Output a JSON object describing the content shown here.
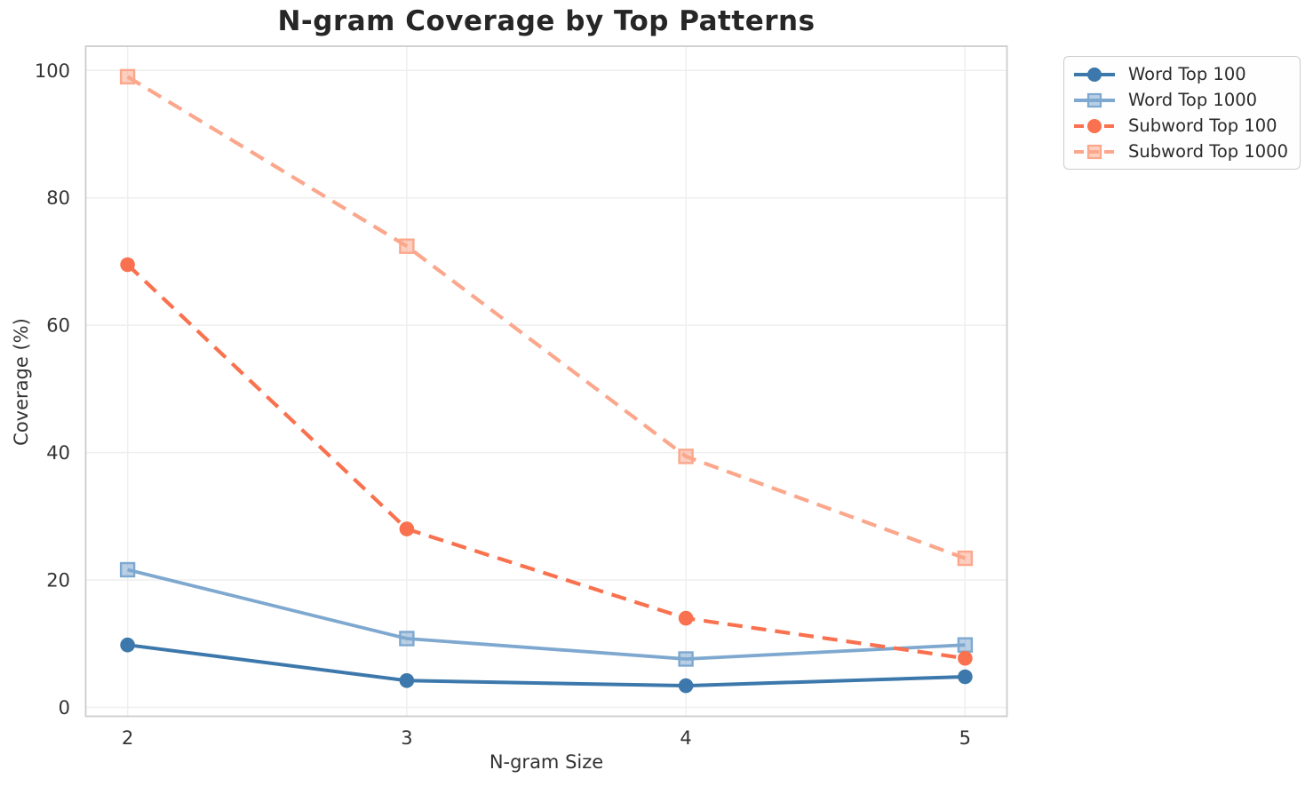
{
  "figure": {
    "background": "#ffffff"
  },
  "chart_data": {
    "type": "line",
    "title": "N-gram Coverage by Top Patterns",
    "xlabel": "N-gram Size",
    "ylabel": "Coverage (%)",
    "x": [
      2,
      3,
      4,
      5
    ],
    "xticks": [
      "2",
      "3",
      "4",
      "5"
    ],
    "yticks": [
      "0",
      "20",
      "40",
      "60",
      "80",
      "100"
    ],
    "ytick_values": [
      0,
      20,
      40,
      60,
      80,
      100
    ],
    "xlim": [
      1.85,
      5.15
    ],
    "ylim": [
      -1.4,
      103.8
    ],
    "grid": true,
    "legend_position": "outside-upper-right",
    "series": [
      {
        "name": "Word Top 100",
        "values": [
          9.8,
          4.2,
          3.4,
          4.8
        ],
        "color": "#3c78ab",
        "line_style": "solid",
        "marker": "circle",
        "line_width": 4.0
      },
      {
        "name": "Word Top 1000",
        "values": [
          21.6,
          10.8,
          7.6,
          9.8
        ],
        "color": "#7ea8cf",
        "line_style": "solid",
        "marker": "square",
        "line_width": 3.8
      },
      {
        "name": "Subword Top 100",
        "values": [
          69.5,
          28.0,
          14.0,
          7.7
        ],
        "color": "#f9714e",
        "line_style": "dashed",
        "marker": "circle",
        "line_width": 4.2
      },
      {
        "name": "Subword Top 1000",
        "values": [
          99.0,
          72.4,
          39.4,
          23.4
        ],
        "color": "#fba78c",
        "line_style": "dashed",
        "marker": "square",
        "line_width": 4.2
      }
    ]
  },
  "colors": {
    "grid": "#efefef",
    "spine": "#cdcdcd",
    "tick_text": "#333333",
    "title_text": "#262626",
    "legend_border": "#cccccc",
    "legend_text": "#2b2b2b"
  }
}
